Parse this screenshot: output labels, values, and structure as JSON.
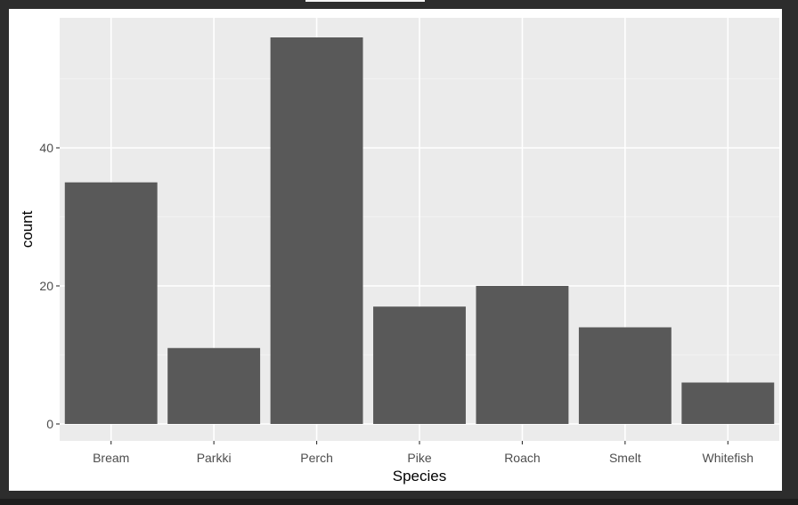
{
  "chart_data": {
    "type": "bar",
    "categories": [
      "Bream",
      "Parkki",
      "Perch",
      "Pike",
      "Roach",
      "Smelt",
      "Whitefish"
    ],
    "values": [
      35,
      11,
      56,
      17,
      20,
      14,
      6
    ],
    "title": "",
    "xlabel": "Species",
    "ylabel": "count",
    "ylim": [
      0,
      59
    ],
    "yticks": [
      0,
      20,
      40
    ],
    "grid": true,
    "legend": "none",
    "colors": {
      "bar": "#595959",
      "panel": "#ebebeb",
      "grid_major": "#ffffff",
      "grid_minor": "#f2f2f2"
    }
  }
}
